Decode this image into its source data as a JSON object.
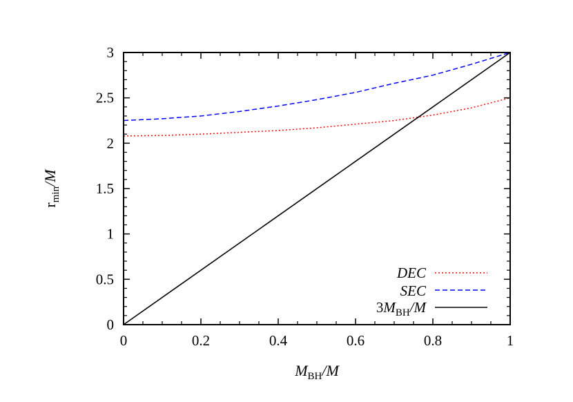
{
  "chart_data": {
    "type": "line",
    "xlabel": {
      "main": "M",
      "sub": "BH",
      "suffix": "/M"
    },
    "ylabel": {
      "main": "r",
      "sub": "min",
      "suffix": "/M"
    },
    "xlim": [
      0,
      1
    ],
    "ylim": [
      0,
      3
    ],
    "xticks": [
      0,
      0.2,
      0.4,
      0.6,
      0.8,
      1
    ],
    "xtick_labels": [
      "0",
      "0.2",
      "0.4",
      "0.6",
      "0.8",
      "1"
    ],
    "yticks": [
      0,
      0.5,
      1,
      1.5,
      2,
      2.5,
      3
    ],
    "ytick_labels": [
      "0",
      "0.5",
      "1",
      "1.5",
      "2",
      "2.5",
      "3"
    ],
    "grid": false,
    "legend_position": "bottom-right",
    "series": [
      {
        "name": "DEC",
        "color": "#ff0000",
        "dash": "dotted",
        "x": [
          0,
          0.1,
          0.2,
          0.3,
          0.4,
          0.5,
          0.6,
          0.7,
          0.75,
          0.8,
          0.9,
          1.0
        ],
        "y": [
          2.08,
          2.085,
          2.1,
          2.12,
          2.14,
          2.17,
          2.21,
          2.25,
          2.28,
          2.31,
          2.39,
          2.5
        ]
      },
      {
        "name": "SEC",
        "color": "#0000ff",
        "dash": "dashed",
        "x": [
          0,
          0.1,
          0.2,
          0.3,
          0.4,
          0.5,
          0.6,
          0.7,
          0.8,
          0.9,
          1.0
        ],
        "y": [
          2.25,
          2.27,
          2.3,
          2.35,
          2.41,
          2.48,
          2.56,
          2.66,
          2.75,
          2.87,
          3.0
        ]
      },
      {
        "name": {
          "prefix": "3",
          "main": "M",
          "sub": "BH",
          "suffix": "/M"
        },
        "color": "#000000",
        "dash": "solid",
        "x": [
          0,
          1
        ],
        "y": [
          0,
          3
        ]
      }
    ]
  }
}
